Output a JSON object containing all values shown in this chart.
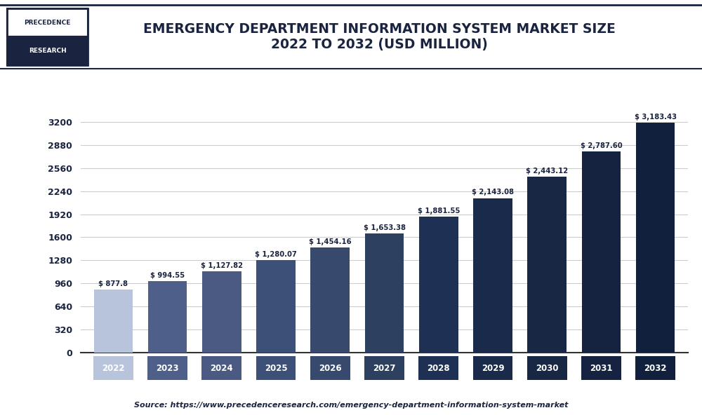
{
  "title": "EMERGENCY DEPARTMENT INFORMATION SYSTEM MARKET SIZE\n2022 TO 2032 (USD MILLION)",
  "years": [
    "2022",
    "2023",
    "2024",
    "2025",
    "2026",
    "2027",
    "2028",
    "2029",
    "2030",
    "2031",
    "2032"
  ],
  "values": [
    877.8,
    994.55,
    1127.82,
    1280.07,
    1454.16,
    1653.38,
    1881.55,
    2143.08,
    2443.12,
    2787.6,
    3183.43
  ],
  "labels": [
    "$ 877.8",
    "$ 994.55",
    "$ 1,127.82",
    "$ 1,280.07",
    "$ 1,454.16",
    "$ 1,653.38",
    "$ 1,881.55",
    "$ 2,143.08",
    "$ 2,443.12",
    "$ 2,787.60",
    "$ 3,183.43"
  ],
  "bar_colors": [
    "#b8c4dc",
    "#4e5f8a",
    "#4a5a82",
    "#3d5078",
    "#374a6e",
    "#2e4060",
    "#1e3054",
    "#1a2a4a",
    "#182744",
    "#152240",
    "#11203c"
  ],
  "yticks": [
    0,
    320,
    640,
    960,
    1280,
    1600,
    1920,
    2240,
    2560,
    2880,
    3200
  ],
  "ylim": [
    0,
    3450
  ],
  "source_text": "Source: https://www.precedenceresearch.com/emergency-department-information-system-market",
  "title_color": "#1a2440",
  "axis_color": "#333333",
  "grid_color": "#cccccc",
  "background_color": "#ffffff",
  "logo_text_line1": "PRECEDENCE",
  "logo_text_line2": "RESEARCH",
  "logo_color_top": "#1a2440",
  "logo_bg_top": "#ffffff",
  "logo_bg_bottom": "#1a2440"
}
